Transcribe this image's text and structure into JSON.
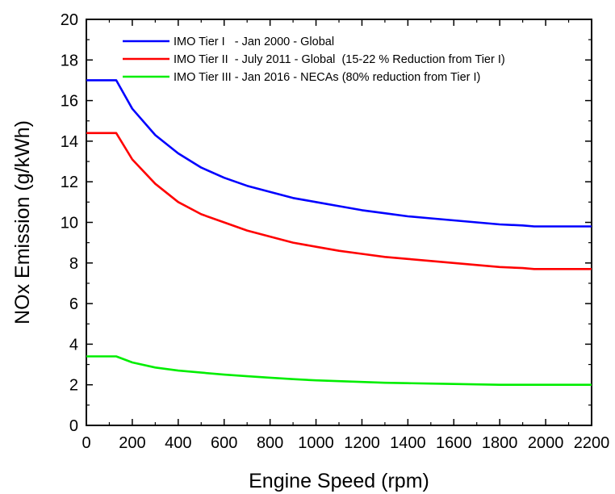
{
  "chart_data": {
    "type": "line",
    "xlabel": "Engine Speed (rpm)",
    "ylabel": "NOx Emission (g/kWh)",
    "xlim": [
      0,
      2200
    ],
    "ylim": [
      0,
      20
    ],
    "xticks": [
      0,
      200,
      400,
      600,
      800,
      1000,
      1200,
      1400,
      1600,
      1800,
      2000,
      2200
    ],
    "yticks": [
      0,
      2,
      4,
      6,
      8,
      10,
      12,
      14,
      16,
      18,
      20
    ],
    "grid": false,
    "legend_position": "top",
    "x": [
      0,
      130,
      200,
      300,
      400,
      500,
      600,
      700,
      800,
      900,
      1000,
      1100,
      1200,
      1300,
      1400,
      1500,
      1600,
      1700,
      1800,
      1900,
      1950,
      2000,
      2100,
      2200
    ],
    "series": [
      {
        "name": "IMO Tier I   - Jan 2000 - Global",
        "color": "#0000ff",
        "values": [
          17.0,
          17.0,
          15.6,
          14.3,
          13.4,
          12.7,
          12.2,
          11.8,
          11.5,
          11.2,
          11.0,
          10.8,
          10.6,
          10.45,
          10.3,
          10.2,
          10.1,
          10.0,
          9.9,
          9.85,
          9.8,
          9.8,
          9.8,
          9.8
        ]
      },
      {
        "name": "IMO Tier II  - July 2011 - Global  (15-22 % Reduction from Tier I)",
        "color": "#ff0000",
        "values": [
          14.4,
          14.4,
          13.1,
          11.9,
          11.0,
          10.4,
          10.0,
          9.6,
          9.3,
          9.0,
          8.8,
          8.6,
          8.45,
          8.3,
          8.2,
          8.1,
          8.0,
          7.9,
          7.8,
          7.75,
          7.7,
          7.7,
          7.7,
          7.7
        ]
      },
      {
        "name": "IMO Tier III - Jan 2016 - NECAs (80% reduction from Tier I)",
        "color": "#00ee00",
        "values": [
          3.4,
          3.4,
          3.1,
          2.85,
          2.7,
          2.6,
          2.5,
          2.42,
          2.35,
          2.28,
          2.22,
          2.18,
          2.14,
          2.1,
          2.08,
          2.06,
          2.04,
          2.02,
          2.0,
          2.0,
          2.0,
          2.0,
          2.0,
          2.0
        ]
      }
    ]
  }
}
